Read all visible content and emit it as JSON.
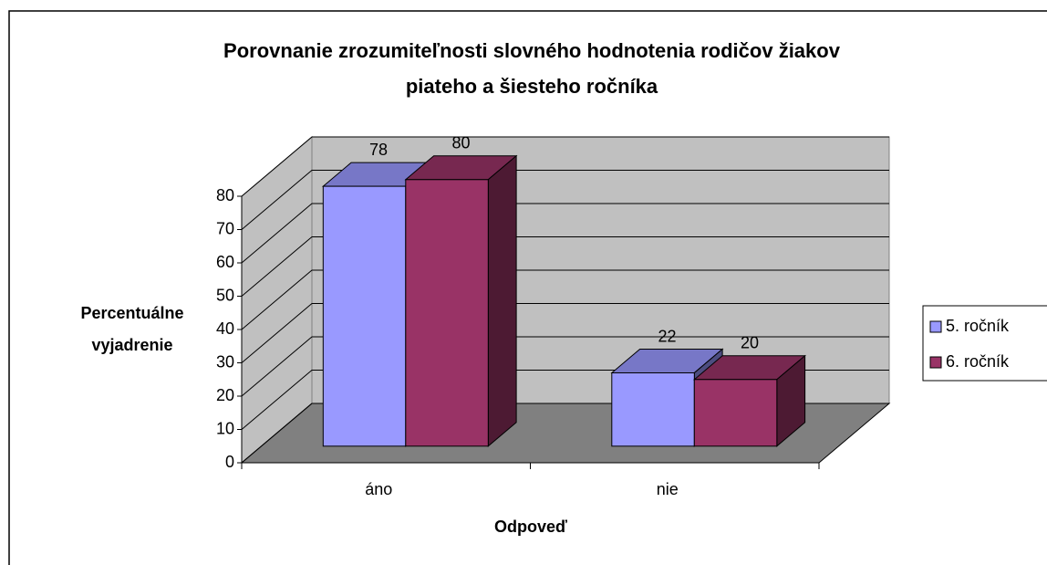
{
  "chart_data": {
    "type": "bar3d",
    "title": [
      "Porovnanie zrozumiteľnosti slovného hodnotenia rodičov žiakov",
      "piateho a šiesteho ročníka"
    ],
    "y_label": [
      "Percentuálne",
      "vyjadrenie"
    ],
    "x_label": "Odpoveď",
    "categories": [
      "áno",
      "nie"
    ],
    "series": [
      {
        "name": "5. ročník",
        "color": "#9999ff",
        "values": [
          78,
          22
        ]
      },
      {
        "name": "6. ročník",
        "color": "#993366",
        "values": [
          80,
          20
        ]
      }
    ],
    "ylim": [
      0,
      80
    ],
    "yticks": [
      0,
      10,
      20,
      30,
      40,
      50,
      60,
      70,
      80
    ],
    "grid": true,
    "legend": "right"
  }
}
